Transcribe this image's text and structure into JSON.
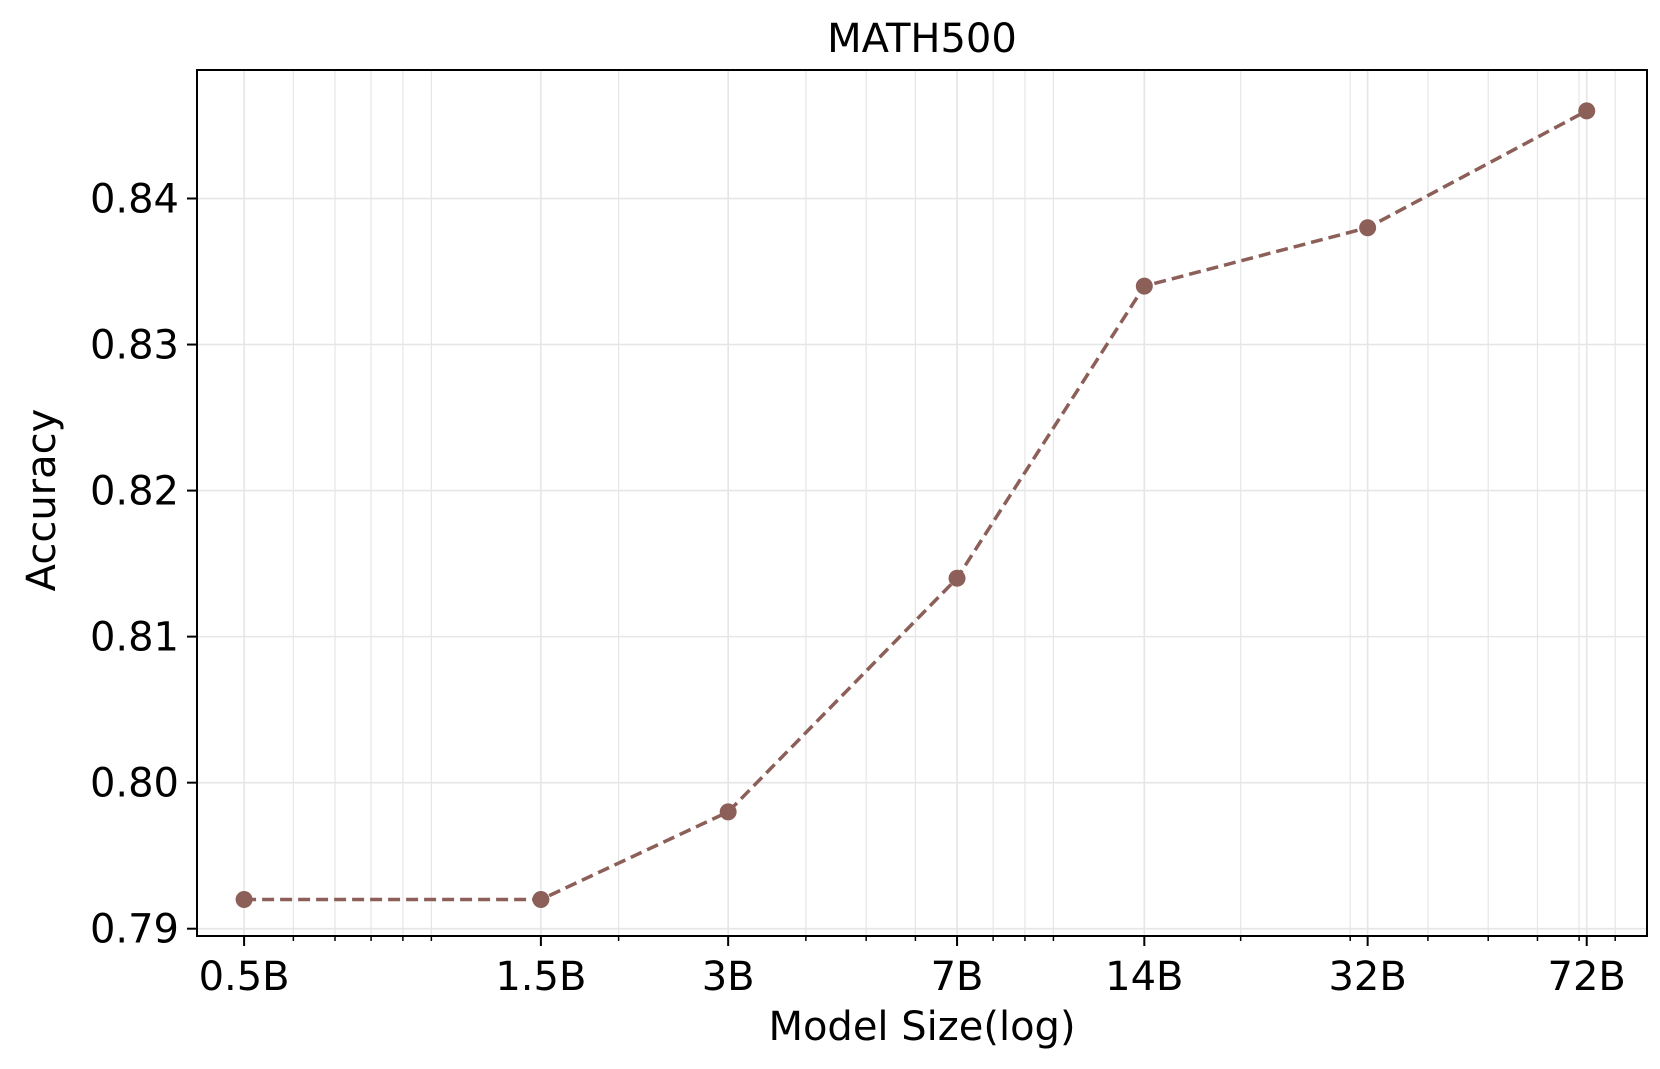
{
  "chart_data": {
    "type": "line",
    "title": "MATH500",
    "xlabel": "Model Size(log)",
    "ylabel": "Accuracy",
    "x_scale": "log",
    "xlim": [
      0.42,
      90
    ],
    "ylim": [
      0.7895,
      0.8488
    ],
    "categories": [
      "0.5B",
      "1.5B",
      "3B",
      "7B",
      "14B",
      "32B",
      "72B"
    ],
    "x": [
      0.5,
      1.5,
      3,
      7,
      14,
      32,
      72
    ],
    "series": [
      {
        "values": [
          0.792,
          0.792,
          0.798,
          0.814,
          0.834,
          0.838,
          0.846
        ],
        "color": "#8c5f58",
        "line_style": "dashed",
        "marker": "circle"
      }
    ],
    "yticks": [
      "0.79",
      "0.80",
      "0.81",
      "0.82",
      "0.83",
      "0.84"
    ],
    "grid": true,
    "legend": "none"
  }
}
